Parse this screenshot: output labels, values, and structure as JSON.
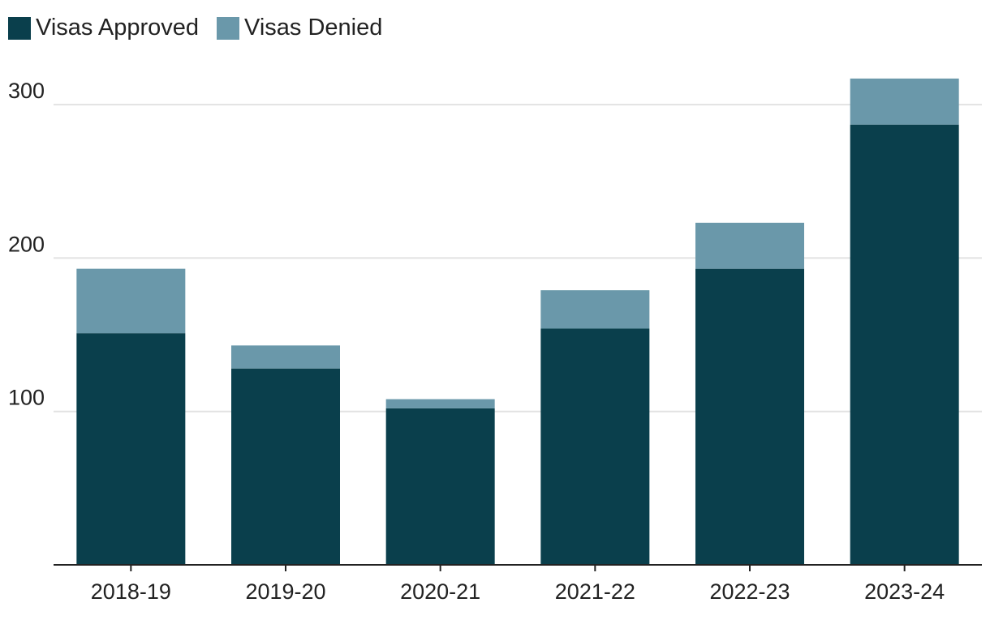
{
  "chart_data": {
    "type": "bar",
    "stacked": true,
    "categories": [
      "2018-19",
      "2019-20",
      "2020-21",
      "2021-22",
      "2022-23",
      "2023-24"
    ],
    "series": [
      {
        "name": "Visas Approved",
        "color": "#0a3f4c",
        "values": [
          151,
          128,
          102,
          154,
          193,
          287
        ]
      },
      {
        "name": "Visas Denied",
        "color": "#6a98aa",
        "values": [
          42,
          15,
          6,
          25,
          30,
          30
        ]
      }
    ],
    "yticks": [
      100,
      200,
      300
    ],
    "ylim": [
      0,
      320
    ],
    "grid": true,
    "legend": "top-left",
    "title": "",
    "xlabel": "",
    "ylabel": ""
  }
}
